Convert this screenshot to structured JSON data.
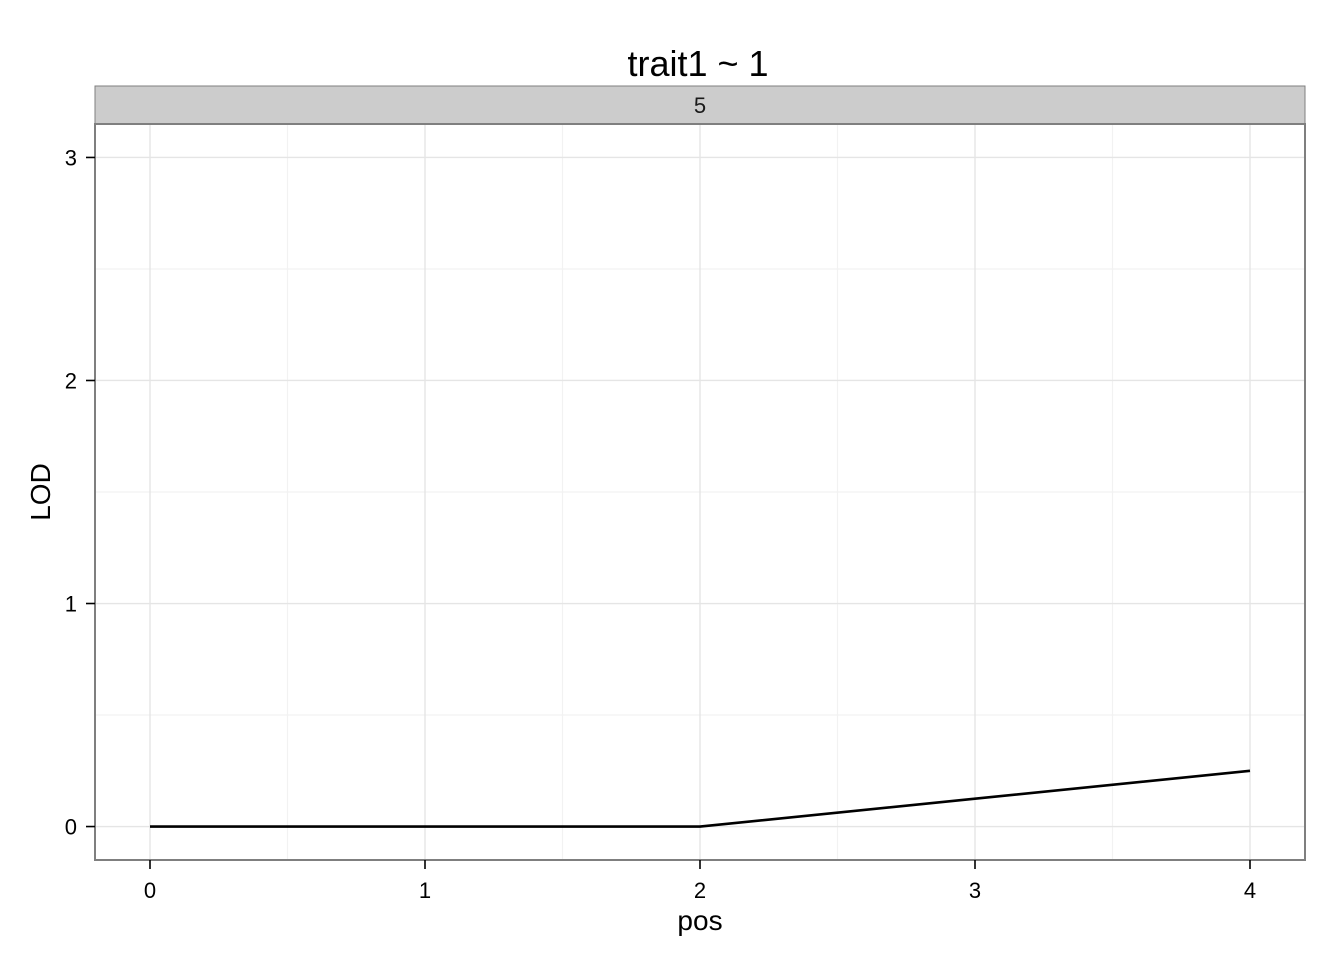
{
  "chart_data": {
    "type": "line",
    "title": "trait1 ~ 1",
    "facet_label": "5",
    "xlabel": "pos",
    "ylabel": "LOD",
    "xlim": [
      -0.2,
      4.2
    ],
    "ylim": [
      -0.15,
      3.15
    ],
    "x_ticks": [
      0,
      1,
      2,
      3,
      4
    ],
    "y_ticks": [
      0,
      1,
      2,
      3
    ],
    "x_tick_labels": [
      "0",
      "1",
      "2",
      "3",
      "4"
    ],
    "y_tick_labels": [
      "0",
      "1",
      "2",
      "3"
    ],
    "grid": true,
    "series": [
      {
        "x": [
          0,
          1,
          2,
          3,
          4
        ],
        "y": [
          0,
          0,
          0,
          0.125,
          0.25
        ],
        "color": "#000000"
      }
    ]
  }
}
